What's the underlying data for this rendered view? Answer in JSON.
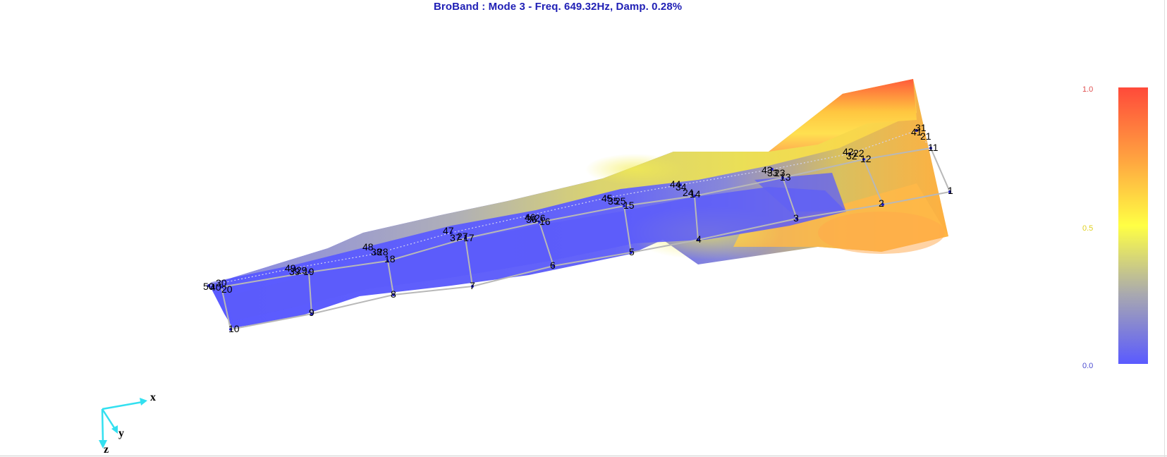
{
  "title": "BroBand : Mode  3 - Freq. 649.32Hz, Damp.  0.28%",
  "colors": {
    "title": "#1f1fb5",
    "low": "#5a5aff",
    "mid": "#ffff44",
    "high": "#ff4a3a",
    "wire": "#b8b8b8",
    "axis": "#33e0f0"
  },
  "color_scale": {
    "max_label": "1.0",
    "mid_label": "0.5",
    "min_label": "0.0"
  },
  "axes": {
    "x_label": "x",
    "y_label": "y",
    "z_label": "z"
  },
  "node_labels": [
    "1",
    "2",
    "3",
    "4",
    "5",
    "6",
    "7",
    "8",
    "9",
    "10",
    "11",
    "12",
    "13",
    "14",
    "15",
    "16",
    "17",
    "18",
    "19",
    "20",
    "21",
    "22",
    "23",
    "24",
    "25",
    "26",
    "27",
    "28",
    "29",
    "30",
    "31",
    "32",
    "33",
    "34",
    "35",
    "36",
    "37",
    "38",
    "39",
    "40",
    "41",
    "42",
    "43",
    "44",
    "45",
    "46",
    "47",
    "48",
    "49",
    "50"
  ]
}
